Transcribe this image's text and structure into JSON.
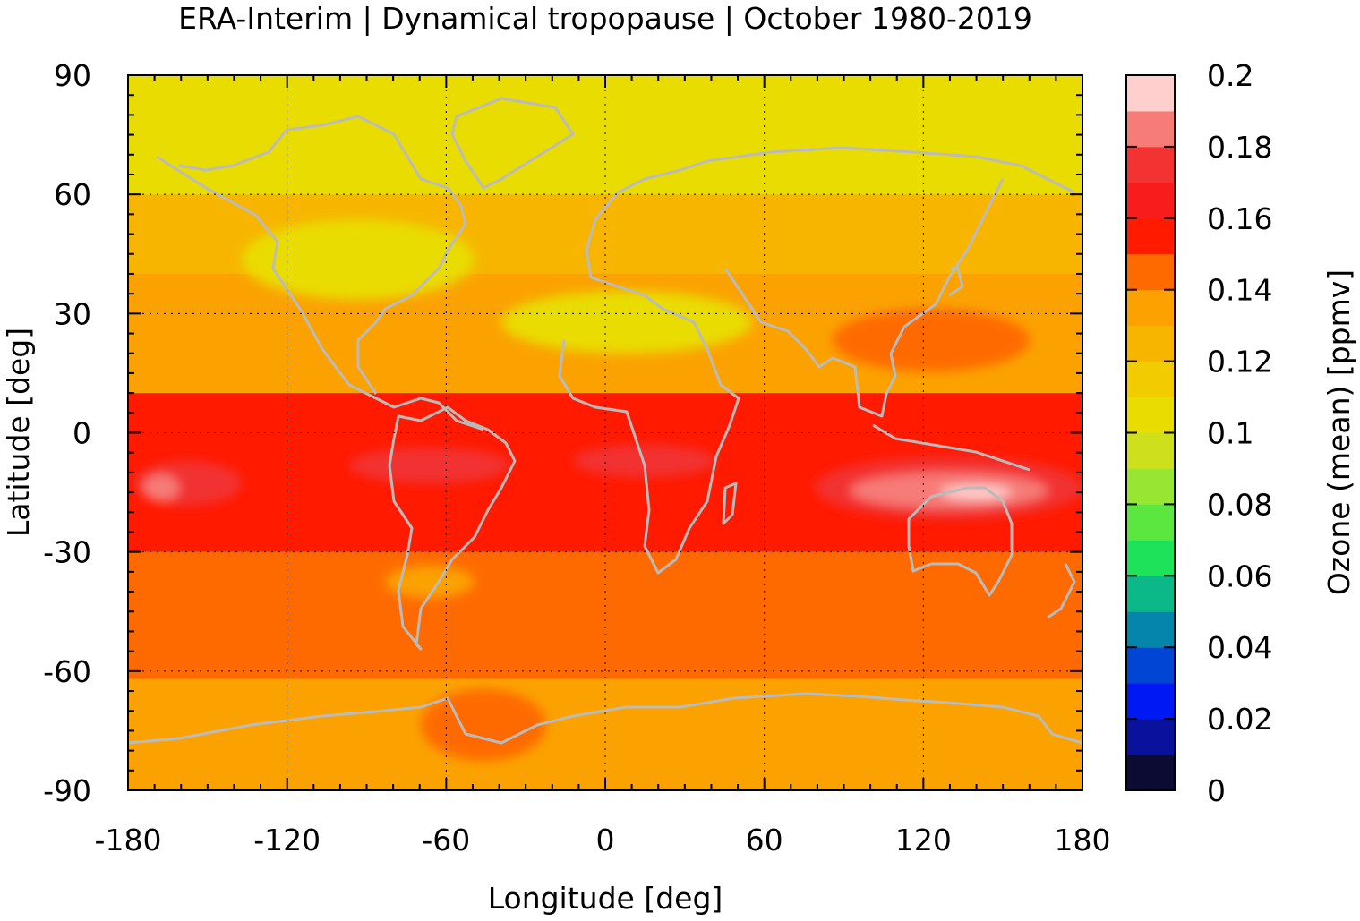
{
  "chart_data": {
    "type": "heatmap",
    "title": "ERA-Interim | Dynamical tropopause | October 1980-2019",
    "xlabel": "Longitude [deg]",
    "ylabel": "Latitude [deg]",
    "colorbar_label": "Ozone (mean) [ppmv]",
    "xlim": [
      -180,
      180
    ],
    "ylim": [
      -90,
      90
    ],
    "xticks": [
      -180,
      -120,
      -60,
      0,
      60,
      120,
      180
    ],
    "yticks": [
      -90,
      -60,
      -30,
      0,
      30,
      60,
      90
    ],
    "colorbar": {
      "range": [
        0,
        0.2
      ],
      "ticks": [
        0,
        0.02,
        0.04,
        0.06,
        0.08,
        0.1,
        0.12,
        0.14,
        0.16,
        0.18,
        0.2
      ],
      "tick_labels": [
        "0",
        "0.02",
        "0.04",
        "0.06",
        "0.08",
        "0.1",
        "0.12",
        "0.14",
        "0.16",
        "0.18",
        "0.2"
      ],
      "colors": [
        "#0b0b33",
        "#0a119c",
        "#0019f4",
        "#0045d4",
        "#0685ab",
        "#0ab987",
        "#1ee25a",
        "#5ce640",
        "#98e532",
        "#cee01c",
        "#e9dc00",
        "#f2cc00",
        "#f7b500",
        "#fba200",
        "#ff6a00",
        "#ff1a00",
        "#f81c1c",
        "#f23331",
        "#f67c78",
        "#ffcfcd"
      ]
    },
    "grid": true,
    "grid_style": "dotted",
    "coastlines": true,
    "coastline_color": "#bbbbbb",
    "field_description": "Zonal bands of mean tropopause ozone; maximum band (0.16-0.2 ppmv) between 10N and 30S, centred near 20S over Australia",
    "bands": [
      {
        "lat_range": [
          60,
          90
        ],
        "value": 0.11
      },
      {
        "lat_range": [
          40,
          60
        ],
        "value": 0.12
      },
      {
        "lat_range": [
          10,
          40
        ],
        "value": 0.13
      },
      {
        "lat_range": [
          -30,
          10
        ],
        "value": 0.16
      },
      {
        "lat_range": [
          -62,
          -30
        ],
        "value": 0.15
      },
      {
        "lat_range": [
          -90,
          -62
        ],
        "value": 0.13
      }
    ]
  }
}
